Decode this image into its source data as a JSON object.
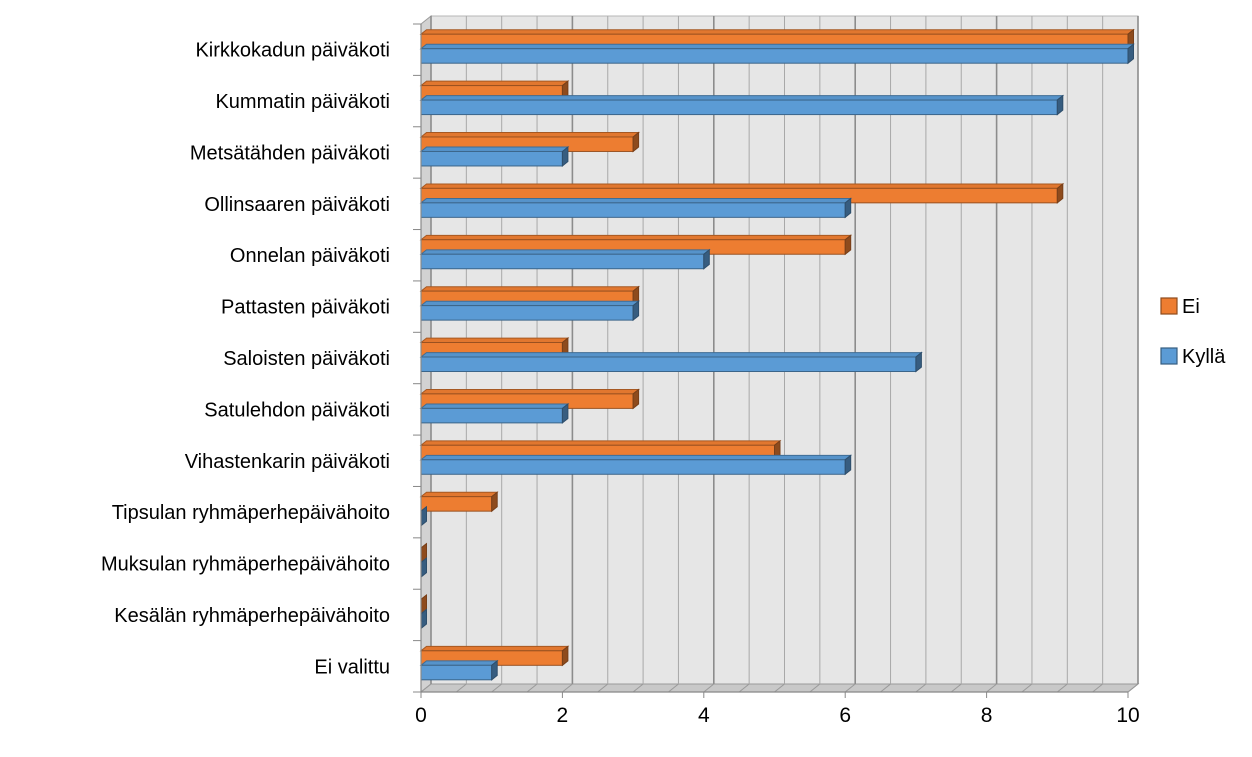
{
  "chart_data": {
    "type": "bar",
    "orientation": "horizontal",
    "style": "3d-clustered",
    "categories": [
      "Kirkkokadun päiväkoti",
      "Kummatin päiväkoti",
      "Metsätähden päiväkoti",
      "Ollinsaaren päiväkoti",
      "Onnelan päiväkoti",
      "Pattasten päiväkoti",
      "Saloisten päiväkoti",
      "Satulehdon päiväkoti",
      "Vihastenkarin päiväkoti",
      "Tipsulan ryhmäperhepäivähoito",
      "Muksulan ryhmäperhepäivähoito",
      "Kesälän ryhmäperhepäivähoito",
      "Ei valittu"
    ],
    "series": [
      {
        "name": "Ei",
        "color": "#ED7D31",
        "values": [
          10,
          2,
          3,
          9,
          6,
          3,
          2,
          3,
          5,
          1,
          0,
          0,
          2
        ]
      },
      {
        "name": "Kyllä",
        "color": "#5B9BD5",
        "values": [
          10,
          9,
          2,
          6,
          4,
          3,
          7,
          2,
          6,
          0,
          0,
          0,
          1
        ]
      }
    ],
    "xlim": [
      0,
      10
    ],
    "x_ticks": [
      "0",
      "2",
      "4",
      "6",
      "8",
      "10"
    ],
    "grid": true,
    "legend_position": "right"
  }
}
